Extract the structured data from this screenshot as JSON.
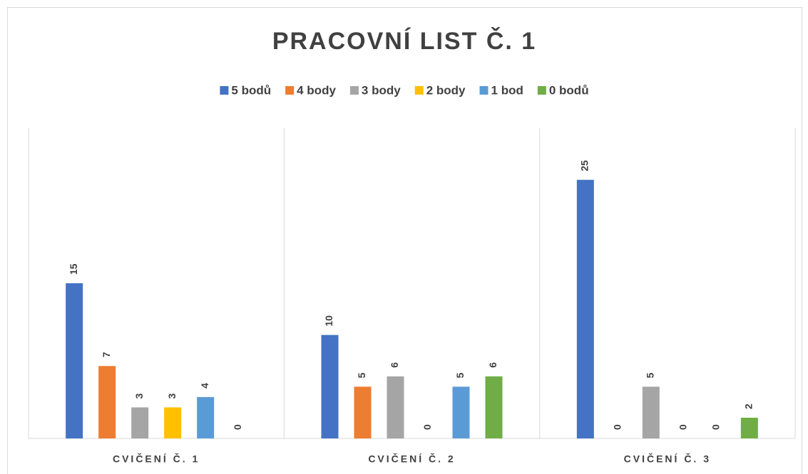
{
  "chart_data": {
    "type": "bar",
    "title": "PRACOVNÍ LIST Č. 1",
    "categories": [
      "CVIČENÍ Č. 1",
      "CVIČENÍ Č. 2",
      "CVIČENÍ Č. 3"
    ],
    "series": [
      {
        "name": "5 bodů",
        "color": "#4472c4",
        "values": [
          15,
          10,
          25
        ]
      },
      {
        "name": "4 body",
        "color": "#ed7d31",
        "values": [
          7,
          5,
          0
        ]
      },
      {
        "name": "3 body",
        "color": "#a5a5a5",
        "values": [
          3,
          6,
          5
        ]
      },
      {
        "name": "2 body",
        "color": "#ffc000",
        "values": [
          3,
          0,
          0
        ]
      },
      {
        "name": "1 bod",
        "color": "#5b9bd5",
        "values": [
          4,
          5,
          0
        ]
      },
      {
        "name": "0 bodů",
        "color": "#70ad47",
        "values": [
          0,
          6,
          2
        ]
      }
    ],
    "ylim": [
      0,
      30
    ],
    "legend": "top"
  }
}
